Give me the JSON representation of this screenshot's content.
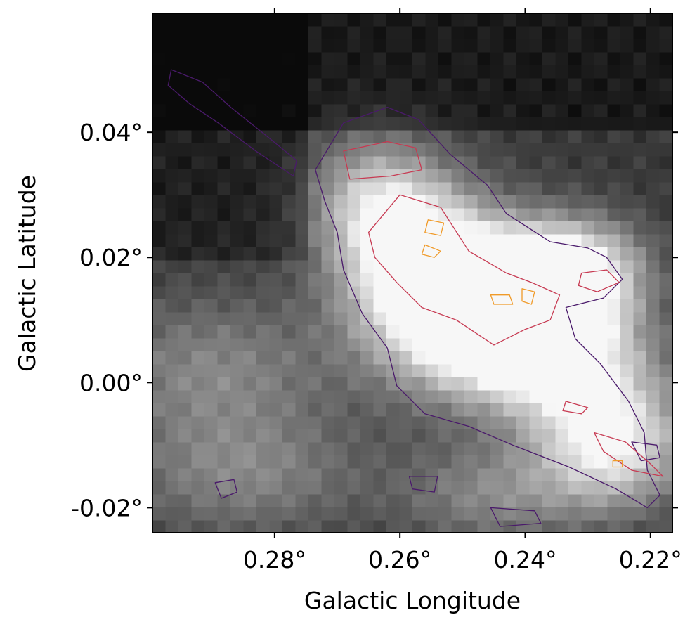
{
  "chart_data": {
    "type": "heatmap",
    "title": "",
    "xlabel": "Galactic Longitude",
    "ylabel": "Galactic Latitude",
    "xlim": [
      0.2995,
      0.2165
    ],
    "ylim": [
      -0.024,
      0.059
    ],
    "x_ticks": [
      {
        "value": 0.28,
        "label": "0.28°"
      },
      {
        "value": 0.26,
        "label": "0.26°"
      },
      {
        "value": 0.24,
        "label": "0.24°"
      },
      {
        "value": 0.22,
        "label": "0.22°"
      }
    ],
    "y_ticks": [
      {
        "value": 0.04,
        "label": "0.04°"
      },
      {
        "value": 0.02,
        "label": "0.02°"
      },
      {
        "value": 0.0,
        "label": "0.00°"
      },
      {
        "value": -0.02,
        "label": "-0.02°"
      }
    ],
    "image_colormap": "grayscale",
    "image_bright_region": "diagonal filament from upper-left (0.27°, 0.03°) to lower-right (0.22°, -0.01°), peak near (0.240°, 0.014°)",
    "contours": [
      {
        "level": 1,
        "color": "#4a1a6b",
        "regions": [
          {
            "name": "main-filament",
            "points": [
              [
                0.269,
                0.0415
              ],
              [
                0.262,
                0.044
              ],
              [
                0.257,
                0.042
              ],
              [
                0.252,
                0.0365
              ],
              [
                0.246,
                0.0315
              ],
              [
                0.243,
                0.027
              ],
              [
                0.236,
                0.0225
              ],
              [
                0.23,
                0.0215
              ],
              [
                0.227,
                0.02
              ],
              [
                0.2245,
                0.0165
              ],
              [
                0.2275,
                0.0135
              ],
              [
                0.2335,
                0.012
              ],
              [
                0.232,
                0.007
              ],
              [
                0.228,
                0.003
              ],
              [
                0.2235,
                -0.003
              ],
              [
                0.221,
                -0.008
              ],
              [
                0.2205,
                -0.014
              ],
              [
                0.2185,
                -0.018
              ],
              [
                0.2205,
                -0.02
              ],
              [
                0.2255,
                -0.017
              ],
              [
                0.233,
                -0.0135
              ],
              [
                0.242,
                -0.01
              ],
              [
                0.249,
                -0.007
              ],
              [
                0.256,
                -0.005
              ],
              [
                0.2605,
                -0.0005
              ],
              [
                0.262,
                0.0055
              ],
              [
                0.266,
                0.011
              ],
              [
                0.269,
                0.018
              ],
              [
                0.27,
                0.024
              ],
              [
                0.272,
                0.029
              ],
              [
                0.2735,
                0.034
              ]
            ]
          },
          {
            "name": "upper-left-wisp",
            "points": [
              [
                0.2965,
                0.05
              ],
              [
                0.2915,
                0.048
              ],
              [
                0.287,
                0.044
              ],
              [
                0.282,
                0.04
              ],
              [
                0.2765,
                0.0355
              ],
              [
                0.277,
                0.033
              ],
              [
                0.283,
                0.037
              ],
              [
                0.289,
                0.0415
              ],
              [
                0.2935,
                0.0445
              ],
              [
                0.297,
                0.0475
              ]
            ]
          },
          {
            "name": "small-blob-1",
            "points": [
              [
                0.2895,
                -0.016
              ],
              [
                0.2865,
                -0.0155
              ],
              [
                0.286,
                -0.0175
              ],
              [
                0.2885,
                -0.0185
              ]
            ]
          },
          {
            "name": "small-blob-2",
            "points": [
              [
                0.2585,
                -0.015
              ],
              [
                0.254,
                -0.015
              ],
              [
                0.2545,
                -0.0175
              ],
              [
                0.258,
                -0.017
              ]
            ]
          },
          {
            "name": "lower-right-blob",
            "points": [
              [
                0.2455,
                -0.02
              ],
              [
                0.2385,
                -0.0205
              ],
              [
                0.2375,
                -0.0225
              ],
              [
                0.244,
                -0.023
              ]
            ]
          },
          {
            "name": "edge-blob",
            "points": [
              [
                0.223,
                -0.0095
              ],
              [
                0.219,
                -0.01
              ],
              [
                0.2185,
                -0.012
              ],
              [
                0.2215,
                -0.0125
              ]
            ]
          }
        ]
      },
      {
        "level": 2,
        "color": "#c73a52",
        "regions": [
          {
            "name": "core-ridge",
            "points": [
              [
                0.26,
                0.03
              ],
              [
                0.2535,
                0.028
              ],
              [
                0.249,
                0.021
              ],
              [
                0.243,
                0.0175
              ],
              [
                0.239,
                0.016
              ],
              [
                0.2345,
                0.014
              ],
              [
                0.236,
                0.01
              ],
              [
                0.24,
                0.0085
              ],
              [
                0.245,
                0.006
              ],
              [
                0.251,
                0.01
              ],
              [
                0.2565,
                0.012
              ],
              [
                0.2605,
                0.016
              ],
              [
                0.264,
                0.02
              ],
              [
                0.265,
                0.024
              ]
            ]
          },
          {
            "name": "upper-clump",
            "points": [
              [
                0.269,
                0.037
              ],
              [
                0.262,
                0.0385
              ],
              [
                0.2575,
                0.0375
              ],
              [
                0.2565,
                0.034
              ],
              [
                0.2615,
                0.033
              ],
              [
                0.268,
                0.0325
              ]
            ]
          },
          {
            "name": "right-clump",
            "points": [
              [
                0.231,
                0.0175
              ],
              [
                0.227,
                0.018
              ],
              [
                0.225,
                0.016
              ],
              [
                0.2285,
                0.0145
              ],
              [
                0.2315,
                0.0155
              ]
            ]
          },
          {
            "name": "lower-right-clump",
            "points": [
              [
                0.229,
                -0.008
              ],
              [
                0.224,
                -0.0095
              ],
              [
                0.22,
                -0.013
              ],
              [
                0.218,
                -0.015
              ],
              [
                0.223,
                -0.014
              ],
              [
                0.2275,
                -0.011
              ]
            ]
          },
          {
            "name": "small-clump",
            "points": [
              [
                0.2335,
                -0.003
              ],
              [
                0.23,
                -0.004
              ],
              [
                0.231,
                -0.005
              ],
              [
                0.234,
                -0.0045
              ]
            ]
          }
        ]
      },
      {
        "level": 3,
        "color": "#f09a28",
        "regions": [
          {
            "name": "peak-1",
            "points": [
              [
                0.2555,
                0.026
              ],
              [
                0.253,
                0.0255
              ],
              [
                0.2535,
                0.0235
              ],
              [
                0.256,
                0.024
              ]
            ]
          },
          {
            "name": "peak-2",
            "points": [
              [
                0.256,
                0.022
              ],
              [
                0.2535,
                0.021
              ],
              [
                0.2545,
                0.02
              ],
              [
                0.2565,
                0.0205
              ]
            ]
          },
          {
            "name": "peak-3",
            "points": [
              [
                0.2455,
                0.014
              ],
              [
                0.2425,
                0.014
              ],
              [
                0.242,
                0.0125
              ],
              [
                0.245,
                0.0125
              ]
            ]
          },
          {
            "name": "peak-4",
            "points": [
              [
                0.2405,
                0.015
              ],
              [
                0.2385,
                0.0145
              ],
              [
                0.239,
                0.0125
              ],
              [
                0.2405,
                0.013
              ]
            ]
          },
          {
            "name": "peak-5",
            "points": [
              [
                0.226,
                -0.0125
              ],
              [
                0.2245,
                -0.0125
              ],
              [
                0.2245,
                -0.0135
              ],
              [
                0.226,
                -0.0135
              ]
            ]
          }
        ]
      }
    ]
  }
}
